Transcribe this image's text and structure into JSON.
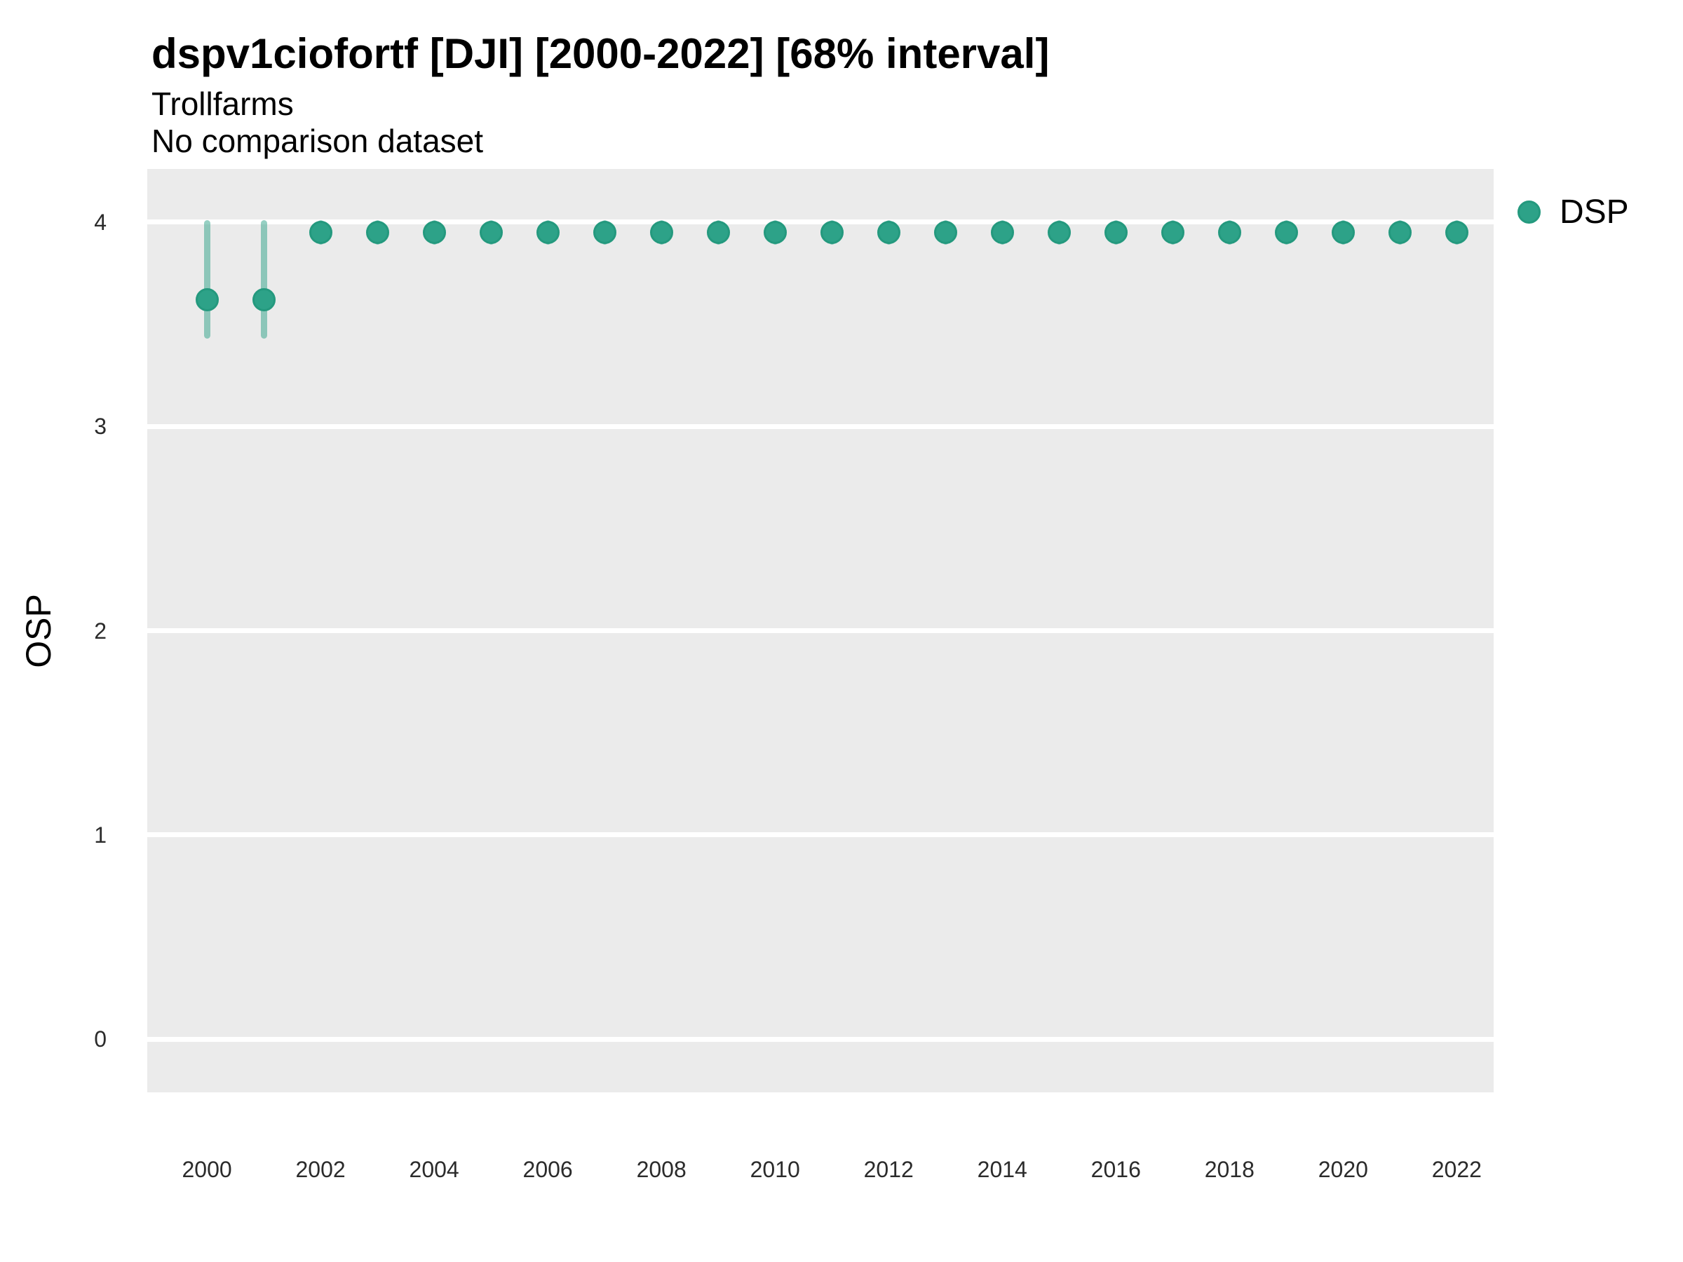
{
  "header": {
    "title": "dspv1ciofortf [DJI] [2000-2022] [68% interval]",
    "subtitle_line1": "Trollfarms",
    "subtitle_line2": "No comparison dataset"
  },
  "legend": {
    "items": [
      {
        "label": "DSP",
        "color": "#2DA288"
      }
    ]
  },
  "chart_data": {
    "type": "scatter",
    "variant": "pointrange",
    "title": "dspv1ciofortf [DJI] [2000-2022] [68% interval]",
    "subtitle": [
      "Trollfarms",
      "No comparison dataset"
    ],
    "xlabel": "",
    "ylabel": "OSP",
    "interval_label": "68% interval",
    "x_domain": [
      1998.95,
      2022.65
    ],
    "y_domain": [
      -0.26,
      4.26
    ],
    "x_ticks": [
      2000,
      2002,
      2004,
      2006,
      2008,
      2010,
      2012,
      2014,
      2016,
      2018,
      2020,
      2022
    ],
    "y_ticks": [
      0,
      1,
      2,
      3,
      4
    ],
    "grid": "major-horizontal-only",
    "panel_bg": "#EBEBEB",
    "grid_color": "#FFFFFF",
    "legend_position": "right-top",
    "series": [
      {
        "name": "DSP",
        "color": "#2DA288",
        "border_color": "#24997E",
        "interval_color": "rgba(45,162,136,0.5)",
        "points": [
          {
            "year": 2000,
            "value": 3.62,
            "low": 3.43,
            "high": 4.01
          },
          {
            "year": 2001,
            "value": 3.62,
            "low": 3.43,
            "high": 4.01
          },
          {
            "year": 2002,
            "value": 3.95,
            "low": 3.89,
            "high": 4.01
          },
          {
            "year": 2003,
            "value": 3.95,
            "low": 3.89,
            "high": 4.01
          },
          {
            "year": 2004,
            "value": 3.95,
            "low": 3.89,
            "high": 4.01
          },
          {
            "year": 2005,
            "value": 3.95,
            "low": 3.89,
            "high": 4.01
          },
          {
            "year": 2006,
            "value": 3.95,
            "low": 3.89,
            "high": 4.01
          },
          {
            "year": 2007,
            "value": 3.95,
            "low": 3.89,
            "high": 4.01
          },
          {
            "year": 2008,
            "value": 3.95,
            "low": 3.89,
            "high": 4.01
          },
          {
            "year": 2009,
            "value": 3.95,
            "low": 3.89,
            "high": 4.01
          },
          {
            "year": 2010,
            "value": 3.95,
            "low": 3.89,
            "high": 4.01
          },
          {
            "year": 2011,
            "value": 3.95,
            "low": 3.89,
            "high": 4.01
          },
          {
            "year": 2012,
            "value": 3.95,
            "low": 3.89,
            "high": 4.01
          },
          {
            "year": 2013,
            "value": 3.95,
            "low": 3.89,
            "high": 4.01
          },
          {
            "year": 2014,
            "value": 3.95,
            "low": 3.89,
            "high": 4.01
          },
          {
            "year": 2015,
            "value": 3.95,
            "low": 3.89,
            "high": 4.01
          },
          {
            "year": 2016,
            "value": 3.95,
            "low": 3.89,
            "high": 4.01
          },
          {
            "year": 2017,
            "value": 3.95,
            "low": 3.89,
            "high": 4.01
          },
          {
            "year": 2018,
            "value": 3.95,
            "low": 3.89,
            "high": 4.01
          },
          {
            "year": 2019,
            "value": 3.95,
            "low": 3.89,
            "high": 4.01
          },
          {
            "year": 2020,
            "value": 3.95,
            "low": 3.89,
            "high": 4.01
          },
          {
            "year": 2021,
            "value": 3.95,
            "low": 3.89,
            "high": 4.01
          },
          {
            "year": 2022,
            "value": 3.95,
            "low": 3.89,
            "high": 4.01
          }
        ]
      }
    ]
  }
}
